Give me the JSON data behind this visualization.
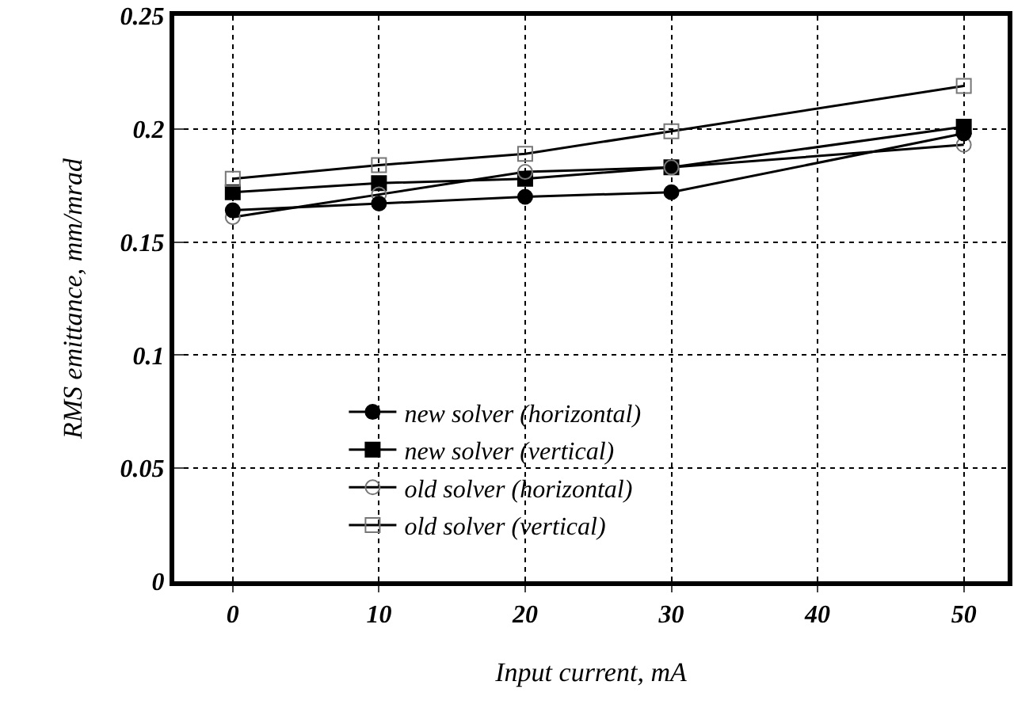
{
  "chart_data": {
    "type": "line",
    "xlabel": "Input current, mA",
    "ylabel": "RMS emittance, mm/mrad",
    "x": [
      0,
      10,
      20,
      30,
      50
    ],
    "series": [
      {
        "name": "new solver (horizontal)",
        "color": "#000000",
        "marker": "circle",
        "values": [
          0.164,
          0.167,
          0.17,
          0.172,
          0.198
        ]
      },
      {
        "name": "new solver (vertical)",
        "color": "#000000",
        "marker": "square",
        "values": [
          0.172,
          0.176,
          0.178,
          0.183,
          0.201
        ]
      },
      {
        "name": "old solver (horizontal)",
        "color": "#000000",
        "marker": "circle-open",
        "values": [
          0.161,
          0.171,
          0.181,
          0.183,
          0.193
        ]
      },
      {
        "name": "old solver (vertical)",
        "color": "#000000",
        "marker": "square-open",
        "values": [
          0.178,
          0.184,
          0.189,
          0.199,
          0.219
        ]
      }
    ],
    "xlim": [
      -4,
      53
    ],
    "xticks": [
      0,
      10,
      20,
      30,
      40,
      50
    ],
    "ylim": [
      0,
      0.25
    ],
    "yticks": [
      0,
      0.05,
      0.1,
      0.15,
      0.2,
      0.25
    ],
    "grid": true,
    "legend": "bottom",
    "line_style": "solid"
  }
}
